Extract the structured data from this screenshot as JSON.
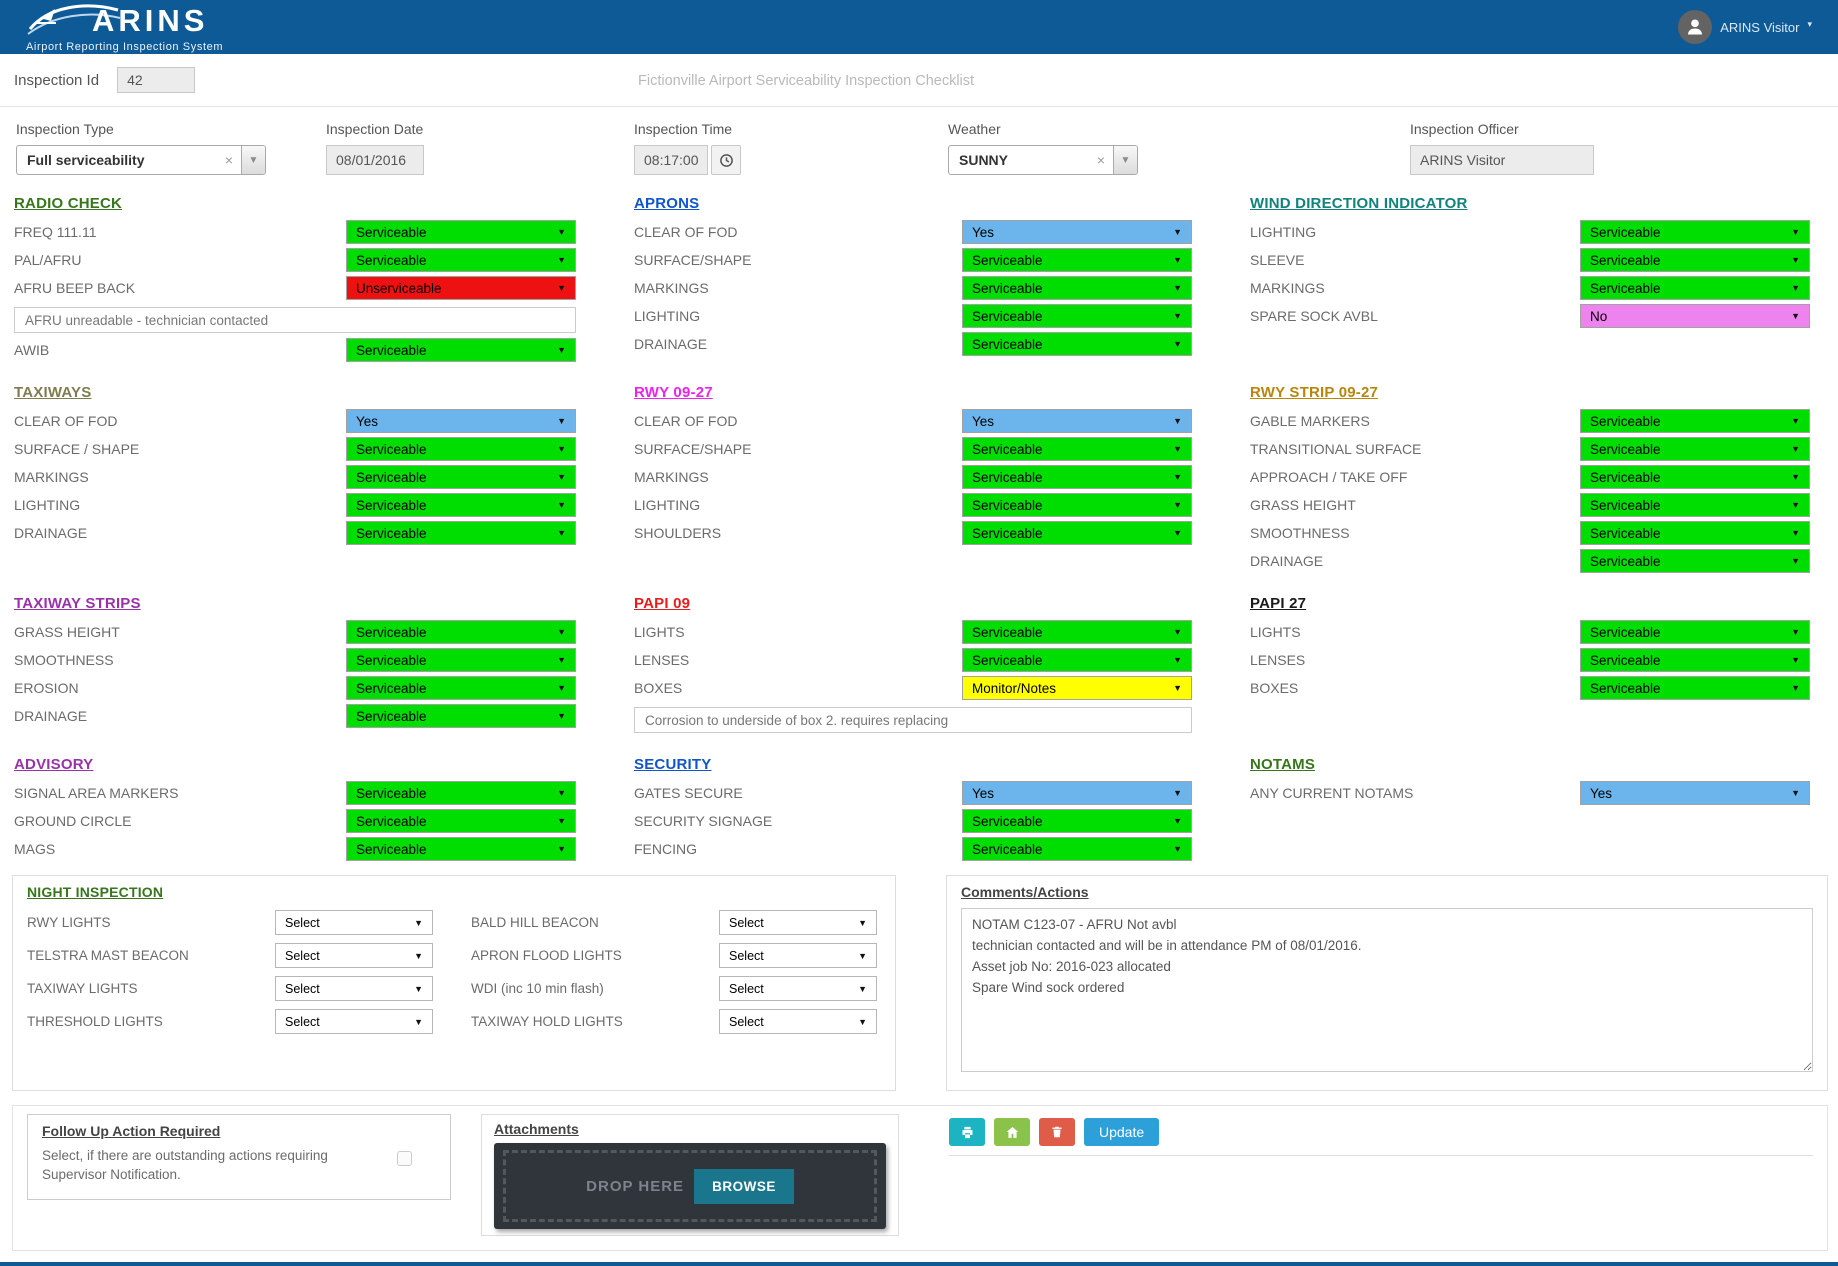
{
  "header": {
    "brand": "ARINS",
    "tagline": "Airport Reporting Inspection System",
    "user": "ARINS Visitor",
    "bar_color": "#0e5a97"
  },
  "meta": {
    "inspection_id_label": "Inspection Id",
    "inspection_id_value": "42",
    "title": "Fictionville Airport Serviceability Inspection Checklist"
  },
  "form": {
    "inspection_type": {
      "label": "Inspection Type",
      "value": "Full serviceability"
    },
    "inspection_date": {
      "label": "Inspection Date",
      "value": "08/01/2016"
    },
    "inspection_time": {
      "label": "Inspection Time",
      "value": "08:17:00"
    },
    "weather": {
      "label": "Weather",
      "value": "SUNNY"
    },
    "inspection_officer": {
      "label": "Inspection Officer",
      "value": "ARINS Visitor"
    }
  },
  "icons": {
    "caret": "▼",
    "clear": "×"
  },
  "status_colors": {
    "Serviceable": "#00dd00",
    "Unserviceable": "#ee1111",
    "Yes": "#6cb5ec",
    "No": "#ee82ee",
    "Monitor/Notes": "#ffff00",
    "Select": "#ffffff"
  },
  "sections": [
    {
      "title": "RADIO CHECK",
      "color": "#38761d",
      "rows": [
        {
          "label": "FREQ 111.11",
          "value": "Serviceable"
        },
        {
          "label": "PAL/AFRU",
          "value": "Serviceable"
        },
        {
          "label": "AFRU BEEP BACK",
          "value": "Unserviceable"
        },
        {
          "note": "AFRU unreadable - technician contacted"
        },
        {
          "label": "AWIB",
          "value": "Serviceable"
        }
      ]
    },
    {
      "title": "APRONS",
      "color": "#1155cc",
      "rows": [
        {
          "label": "CLEAR OF FOD",
          "value": "Yes"
        },
        {
          "label": "SURFACE/SHAPE",
          "value": "Serviceable"
        },
        {
          "label": "MARKINGS",
          "value": "Serviceable"
        },
        {
          "label": "LIGHTING",
          "value": "Serviceable"
        },
        {
          "label": "DRAINAGE",
          "value": "Serviceable"
        }
      ]
    },
    {
      "title": "WIND DIRECTION INDICATOR",
      "color": "#11827c",
      "rows": [
        {
          "label": "LIGHTING",
          "value": "Serviceable"
        },
        {
          "label": "SLEEVE",
          "value": "Serviceable"
        },
        {
          "label": "MARKINGS",
          "value": "Serviceable"
        },
        {
          "label": "SPARE SOCK AVBL",
          "value": "No"
        }
      ]
    },
    {
      "title": "TAXIWAYS",
      "color": "#7d7d51",
      "rows": [
        {
          "label": "CLEAR OF FOD",
          "value": "Yes"
        },
        {
          "label": "SURFACE / SHAPE",
          "value": "Serviceable"
        },
        {
          "label": "MARKINGS",
          "value": "Serviceable"
        },
        {
          "label": "LIGHTING",
          "value": "Serviceable"
        },
        {
          "label": "DRAINAGE",
          "value": "Serviceable"
        }
      ]
    },
    {
      "title": "RWY 09-27",
      "color": "#ee22ee",
      "rows": [
        {
          "label": "CLEAR OF FOD",
          "value": "Yes"
        },
        {
          "label": "SURFACE/SHAPE",
          "value": "Serviceable"
        },
        {
          "label": "MARKINGS",
          "value": "Serviceable"
        },
        {
          "label": "LIGHTING",
          "value": "Serviceable"
        },
        {
          "label": "SHOULDERS",
          "value": "Serviceable"
        }
      ]
    },
    {
      "title": "RWY STRIP 09-27",
      "color": "#b8860b",
      "rows": [
        {
          "label": "GABLE MARKERS",
          "value": "Serviceable"
        },
        {
          "label": "TRANSITIONAL SURFACE",
          "value": "Serviceable"
        },
        {
          "label": "APPROACH / TAKE OFF",
          "value": "Serviceable"
        },
        {
          "label": "GRASS HEIGHT",
          "value": "Serviceable"
        },
        {
          "label": "SMOOTHNESS",
          "value": "Serviceable"
        },
        {
          "label": "DRAINAGE",
          "value": "Serviceable"
        }
      ]
    },
    {
      "title": "TAXIWAY STRIPS",
      "color": "#9932a8",
      "rows": [
        {
          "label": "GRASS HEIGHT",
          "value": "Serviceable"
        },
        {
          "label": "SMOOTHNESS",
          "value": "Serviceable"
        },
        {
          "label": "EROSION",
          "value": "Serviceable"
        },
        {
          "label": "DRAINAGE",
          "value": "Serviceable"
        }
      ]
    },
    {
      "title": "PAPI 09",
      "color": "#e81c1c",
      "rows": [
        {
          "label": "LIGHTS",
          "value": "Serviceable"
        },
        {
          "label": "LENSES",
          "value": "Serviceable"
        },
        {
          "label": "BOXES",
          "value": "Monitor/Notes"
        },
        {
          "note": "Corrosion to underside of box 2. requires replacing"
        }
      ]
    },
    {
      "title": "PAPI 27",
      "color": "#1a1a1a",
      "rows": [
        {
          "label": "LIGHTS",
          "value": "Serviceable"
        },
        {
          "label": "LENSES",
          "value": "Serviceable"
        },
        {
          "label": "BOXES",
          "value": "Serviceable"
        }
      ]
    },
    {
      "title": "ADVISORY",
      "color": "#9932a8",
      "rows": [
        {
          "label": "SIGNAL AREA MARKERS",
          "value": "Serviceable"
        },
        {
          "label": "GROUND CIRCLE",
          "value": "Serviceable"
        },
        {
          "label": "MAGS",
          "value": "Serviceable"
        }
      ]
    },
    {
      "title": "SECURITY",
      "color": "#1155cc",
      "rows": [
        {
          "label": "GATES SECURE",
          "value": "Yes"
        },
        {
          "label": "SECURITY SIGNAGE",
          "value": "Serviceable"
        },
        {
          "label": "FENCING",
          "value": "Serviceable"
        }
      ]
    },
    {
      "title": "NOTAMS",
      "color": "#38761d",
      "rows": [
        {
          "label": "ANY CURRENT NOTAMS",
          "value": "Yes"
        }
      ]
    }
  ],
  "night_inspection": {
    "title": "NIGHT INSPECTION",
    "color": "#38761d",
    "left": [
      {
        "label": "RWY LIGHTS",
        "value": "Select"
      },
      {
        "label": "TELSTRA MAST BEACON",
        "value": "Select"
      },
      {
        "label": "TAXIWAY LIGHTS",
        "value": "Select"
      },
      {
        "label": "THRESHOLD LIGHTS",
        "value": "Select"
      }
    ],
    "right": [
      {
        "label": "BALD HILL BEACON",
        "value": "Select"
      },
      {
        "label": "APRON FLOOD LIGHTS",
        "value": "Select"
      },
      {
        "label": "WDI (inc 10 min flash)",
        "value": "Select"
      },
      {
        "label": "TAXIWAY HOLD LIGHTS",
        "value": "Select"
      }
    ]
  },
  "comments": {
    "title": "Comments/Actions",
    "text": "NOTAM C123-07 - AFRU Not avbl\ntechnician contacted and will be in attendance PM of 08/01/2016.\nAsset job No: 2016-023 allocated\nSpare Wind sock ordered"
  },
  "follow_up": {
    "title": "Follow Up Action Required",
    "text": "Select, if there are outstanding actions requiring Supervisor Notification.",
    "checked": false
  },
  "attachments": {
    "title": "Attachments",
    "drop_label": "DROP HERE",
    "browse_label": "BROWSE"
  },
  "actions": {
    "print_color": "#1cb4c3",
    "home_color": "#8bc34a",
    "delete_color": "#df5c49",
    "update_label": "Update",
    "update_color": "#2d9fd9"
  }
}
